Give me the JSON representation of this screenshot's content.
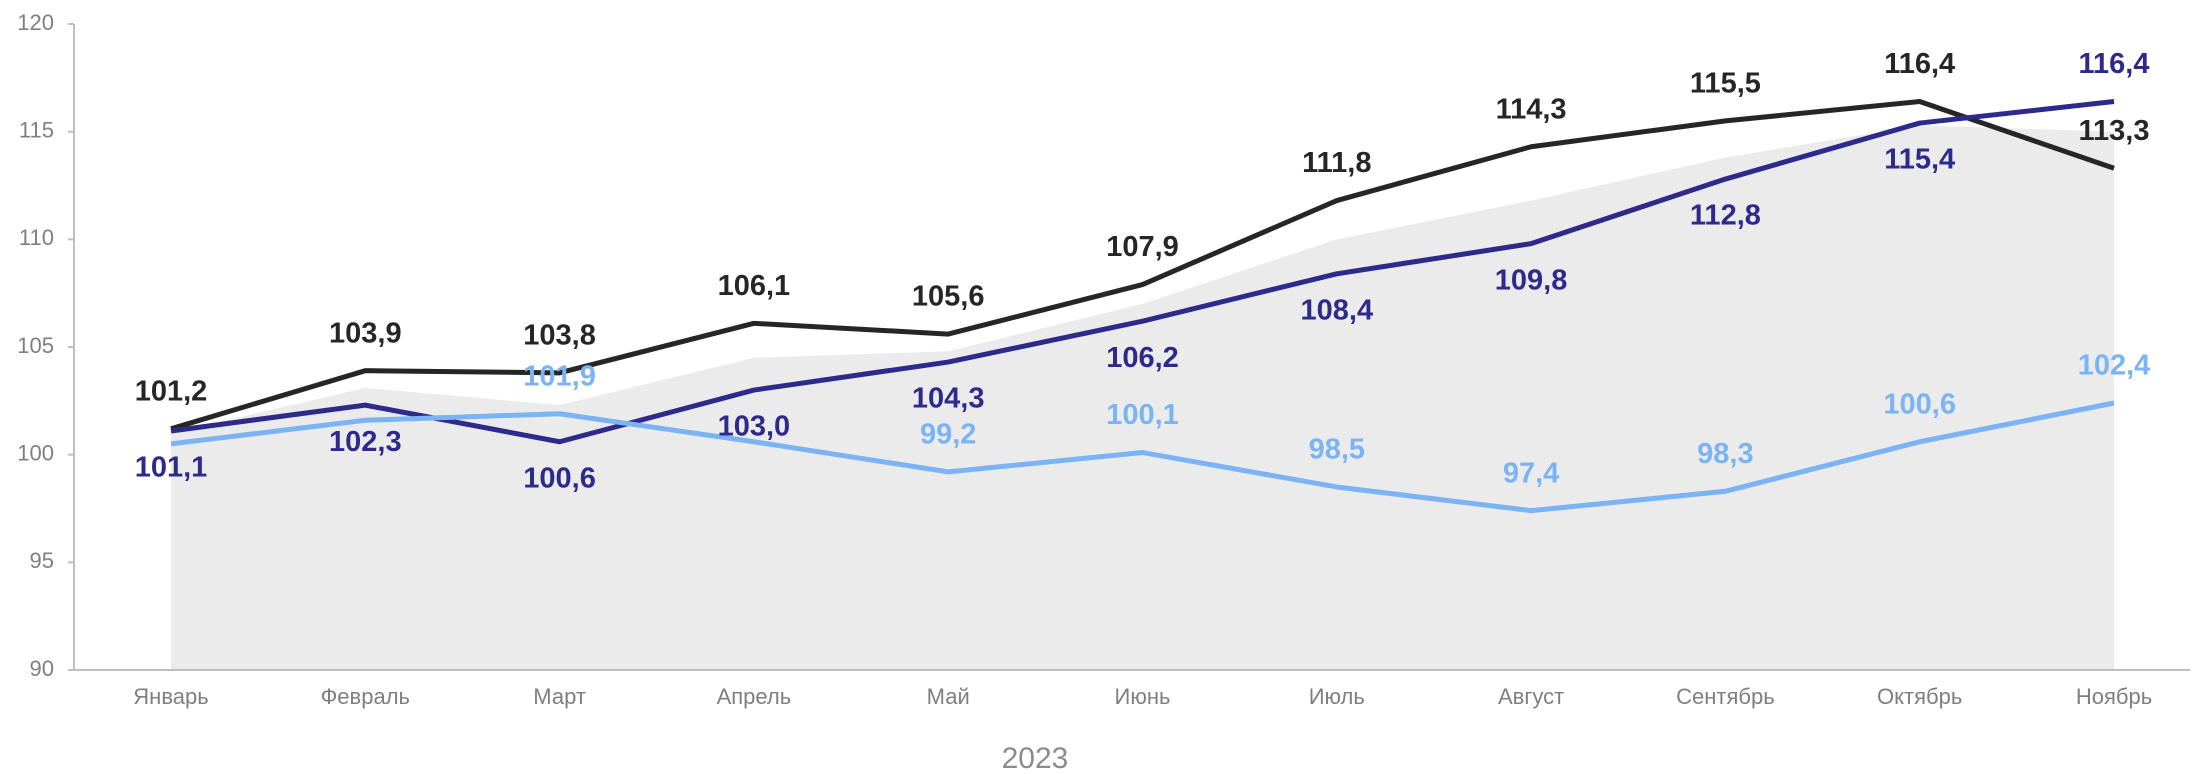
{
  "chart_data": {
    "type": "line",
    "x_axis_label": "2023",
    "categories": [
      "Январь",
      "Февраль",
      "Март",
      "Апрель",
      "Май",
      "Июнь",
      "Июль",
      "Август",
      "Сентябрь",
      "Октябрь",
      "Ноябрь"
    ],
    "ylim": [
      90,
      120
    ],
    "yticks": [
      90,
      95,
      100,
      105,
      110,
      115,
      120
    ],
    "area": {
      "color": "#ebebeb",
      "values": [
        101,
        103.1,
        102.3,
        104.5,
        104.8,
        107,
        110,
        111.8,
        113.8,
        115.3,
        115
      ]
    },
    "series": [
      {
        "color": "#262626",
        "values": [
          101.2,
          103.9,
          103.8,
          106.1,
          105.6,
          107.9,
          111.8,
          114.3,
          115.5,
          116.4,
          113.3
        ],
        "value_labels": [
          "101,2",
          "103,9",
          "103,8",
          "106,1",
          "105,6",
          "107,9",
          "111,8",
          "114,3",
          "115,5",
          "116,4",
          "113,3"
        ]
      },
      {
        "color": "#2e2a8c",
        "values": [
          101.1,
          102.3,
          100.6,
          103.0,
          104.3,
          106.2,
          108.4,
          109.8,
          112.8,
          115.4,
          116.4
        ],
        "value_labels": [
          "101,1",
          "102,3",
          "100,6",
          "103,0",
          "104,3",
          "106,2",
          "108,4",
          "109,8",
          "112,8",
          "115,4",
          "116,4"
        ]
      },
      {
        "color": "#7ab4f5",
        "values": [
          100.5,
          101.6,
          101.9,
          100.6,
          99.2,
          100.1,
          98.5,
          97.4,
          98.3,
          100.6,
          102.4
        ],
        "value_labels": [
          null,
          null,
          "101,9",
          null,
          "99,2",
          "100,1",
          "98,5",
          "97,4",
          "98,3",
          "100,6",
          "102,4"
        ]
      }
    ]
  }
}
